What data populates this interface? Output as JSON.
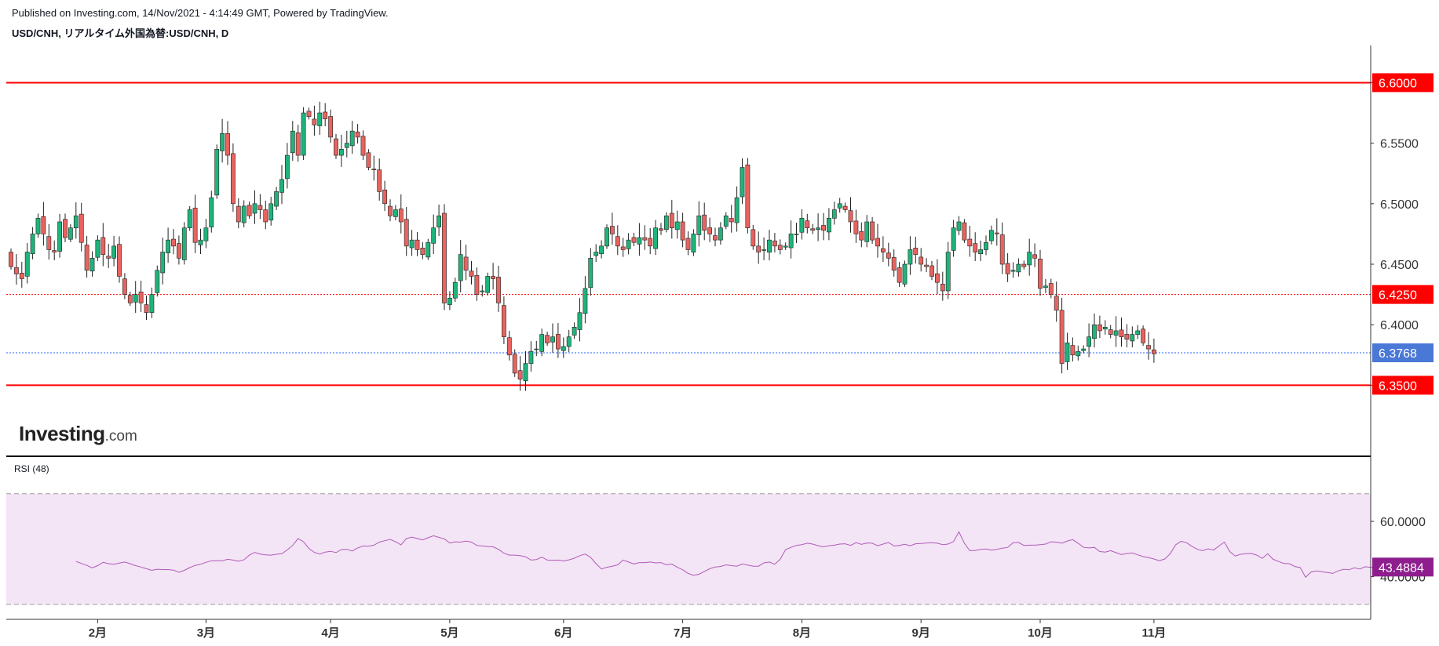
{
  "header": {
    "published": "Published on Investing.com, 14/Nov/2021 - 4:14:49 GMT, Powered by TradingView.",
    "symbol": "USD/CNH, リアルタイム外国為替:USD/CNH, D"
  },
  "logo": {
    "main": "Investing",
    "suffix": ".com"
  },
  "colors": {
    "up": "#26a69a",
    "up_fill": "#1fb37a",
    "down": "#ef5350",
    "down_fill": "#e8635f",
    "level_line": "#ff0000",
    "current_line": "#2962ff",
    "current_tag": "#4a78d6",
    "rsi_line": "#b05bb8",
    "rsi_band": "#f3e5f5",
    "rsi_tag": "#8e1e8e"
  },
  "chart_data": [
    {
      "type": "candlestick",
      "y_range": [
        6.325,
        6.61
      ],
      "y_ticks": [
        6.6,
        6.55,
        6.5,
        6.45,
        6.4,
        6.35
      ],
      "y_tick_labels": [
        "6.6000",
        "6.5500",
        "6.5000",
        "6.4500",
        "6.4000",
        "6.3500"
      ],
      "x_ticks": [
        {
          "label": "2月",
          "day": 16
        },
        {
          "label": "3月",
          "day": 36
        },
        {
          "label": "4月",
          "day": 59
        },
        {
          "label": "5月",
          "day": 81
        },
        {
          "label": "6月",
          "day": 102
        },
        {
          "label": "7月",
          "day": 124
        },
        {
          "label": "8月",
          "day": 146
        },
        {
          "label": "9月",
          "day": 168
        },
        {
          "label": "10月",
          "day": 190
        },
        {
          "label": "11月",
          "day": 211
        }
      ],
      "horizontal_lines": [
        {
          "value": 6.6,
          "label": "6.6000",
          "style": "solid"
        },
        {
          "value": 6.425,
          "label": "6.4250",
          "style": "dotted"
        },
        {
          "value": 6.35,
          "label": "6.3500",
          "style": "solid"
        }
      ],
      "current_price": {
        "value": 6.3768,
        "label": "6.3768"
      },
      "closes": [
        6.448,
        6.442,
        6.438,
        6.46,
        6.475,
        6.488,
        6.475,
        6.462,
        6.46,
        6.485,
        6.472,
        6.48,
        6.49,
        6.468,
        6.445,
        6.455,
        6.47,
        6.458,
        6.455,
        6.465,
        6.44,
        6.425,
        6.418,
        6.425,
        6.418,
        6.41,
        6.425,
        6.445,
        6.46,
        6.47,
        6.465,
        6.455,
        6.48,
        6.495,
        6.468,
        6.47,
        6.48,
        6.505,
        6.545,
        6.558,
        6.54,
        6.5,
        6.485,
        6.498,
        6.49,
        6.5,
        6.495,
        6.485,
        6.5,
        6.51,
        6.52,
        6.54,
        6.56,
        6.54,
        6.575,
        6.572,
        6.565,
        6.575,
        6.57,
        6.555,
        6.54,
        6.545,
        6.55,
        6.56,
        6.555,
        6.54,
        6.53,
        6.528,
        6.51,
        6.5,
        6.49,
        6.495,
        6.485,
        6.465,
        6.47,
        6.462,
        6.458,
        6.468,
        6.48,
        6.49,
        6.418,
        6.422,
        6.435,
        6.458,
        6.445,
        6.44,
        6.425,
        6.428,
        6.44,
        6.438,
        6.418,
        6.39,
        6.375,
        6.36,
        6.355,
        6.368,
        6.378,
        6.38,
        6.392,
        6.385,
        6.39,
        6.38,
        6.382,
        6.39,
        6.398,
        6.41,
        6.43,
        6.455,
        6.46,
        6.465,
        6.48,
        6.475,
        6.465,
        6.462,
        6.47,
        6.468,
        6.472,
        6.47,
        6.465,
        6.48,
        6.478,
        6.49,
        6.48,
        6.485,
        6.47,
        6.462,
        6.475,
        6.49,
        6.478,
        6.475,
        6.47,
        6.48,
        6.49,
        6.485,
        6.505,
        6.53,
        6.48,
        6.465,
        6.46,
        6.462,
        6.47,
        6.465,
        6.462,
        6.465,
        6.475,
        6.475,
        6.488,
        6.48,
        6.478,
        6.48,
        6.478,
        6.488,
        6.495,
        6.5,
        6.495,
        6.485,
        6.475,
        6.47,
        6.485,
        6.47,
        6.465,
        6.46,
        6.455,
        6.445,
        6.435,
        6.45,
        6.462,
        6.458,
        6.45,
        6.448,
        6.44,
        6.435,
        6.428,
        6.46,
        6.48,
        6.485,
        6.47,
        6.465,
        6.46,
        6.462,
        6.468,
        6.478,
        6.475,
        6.45,
        6.442,
        6.445,
        6.45,
        6.448,
        6.46,
        6.455,
        6.43,
        6.432,
        6.425,
        6.412,
        6.368,
        6.385,
        6.375,
        6.378,
        6.38,
        6.39,
        6.4,
        6.395,
        6.398,
        6.392,
        6.395,
        6.39,
        6.388,
        6.392,
        6.395,
        6.385,
        6.38,
        6.376
      ]
    },
    {
      "type": "line",
      "title": "RSI (48)",
      "y_range": [
        28,
        77
      ],
      "y_ticks": [
        60.0,
        40.0
      ],
      "y_tick_labels": [
        "60.0000",
        "40.0000"
      ],
      "band": [
        70,
        30
      ],
      "current": {
        "value": 43.4884,
        "label": "43.4884"
      },
      "start_day": 12,
      "values": [
        45.5,
        44.8,
        44.1,
        43.2,
        44.0,
        45.2,
        44.7,
        44.5,
        44.9,
        45.3,
        44.7,
        44.0,
        43.5,
        42.9,
        42.3,
        42.7,
        42.6,
        42.6,
        42.4,
        41.6,
        42.3,
        43.3,
        44.1,
        44.5,
        45.2,
        45.8,
        45.8,
        45.8,
        46.3,
        46.0,
        45.6,
        46.1,
        47.8,
        48.8,
        48.2,
        47.9,
        47.8,
        48.1,
        48.3,
        49.7,
        51.3,
        53.8,
        52.6,
        50.2,
        48.8,
        48.2,
        48.9,
        49.2,
        48.7,
        49.8,
        49.9,
        49.3,
        50.4,
        51.1,
        51.0,
        51.4,
        52.5,
        53.0,
        53.5,
        52.6,
        51.5,
        53.8,
        54.3,
        53.8,
        53.3,
        54.1,
        54.8,
        54.2,
        53.7,
        52.2,
        52.6,
        52.5,
        52.9,
        52.5,
        51.3,
        51.1,
        50.9,
        50.8,
        49.9,
        48.5,
        47.8,
        47.8,
        47.6,
        47.2,
        46.0,
        46.2,
        47.1,
        46.0,
        45.9,
        46.0,
        45.7,
        46.1,
        46.7,
        47.6,
        48.2,
        47.0,
        44.7,
        42.8,
        43.4,
        43.8,
        44.3,
        46.0,
        45.3,
        44.6,
        45.1,
        45.1,
        45.3,
        45.0,
        45.1,
        44.3,
        44.6,
        43.4,
        42.5,
        41.2,
        40.5,
        40.9,
        41.9,
        42.9,
        43.5,
        43.7,
        44.3,
        44.0,
        43.8,
        44.6,
        44.2,
        43.8,
        43.8,
        45.0,
        45.3,
        44.5,
        46.3,
        49.8,
        50.6,
        51.3,
        51.6,
        52.1,
        51.8,
        51.2,
        50.8,
        51.2,
        51.4,
        51.8,
        51.9,
        51.3,
        52.3,
        51.7,
        52.2,
        52.1,
        51.2,
        51.8,
        52.4,
        51.1,
        51.3,
        51.7,
        51.2,
        51.9,
        52.0,
        52.2,
        52.3,
        52.1,
        51.6,
        51.8,
        52.7,
        56.2,
        52.1,
        49.4,
        49.5,
        49.9,
        50.0,
        49.6,
        49.9,
        50.3,
        50.6,
        52.3,
        52.4,
        51.3,
        51.4,
        51.4,
        51.6,
        51.8,
        52.6,
        52.5,
        52.1,
        52.9,
        53.4,
        52.1,
        50.6,
        50.4,
        50.6,
        49.1,
        48.9,
        49.4,
        48.7,
        48.0,
        48.4,
        48.6,
        47.9,
        47.3,
        46.9,
        46.4,
        45.8,
        46.4,
        48.3,
        51.5,
        52.8,
        52.3,
        51.0,
        49.9,
        49.4,
        50.1,
        49.6,
        51.1,
        52.5,
        49.1,
        47.5,
        48.1,
        48.3,
        48.4,
        47.8,
        46.6,
        48.3,
        46.3,
        45.5,
        44.8,
        44.7,
        43.7,
        43.3,
        39.8,
        41.7,
        42.1,
        41.8,
        41.5,
        41.2,
        42.1,
        42.7,
        42.5,
        43.2,
        42.8,
        43.6,
        43.4,
        43.2,
        43.3,
        44.1,
        43.8,
        43.1,
        43.5
      ]
    }
  ]
}
